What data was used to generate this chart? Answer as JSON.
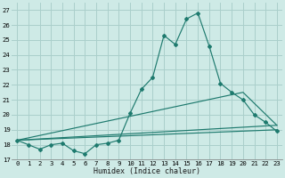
{
  "xlabel": "Humidex (Indice chaleur)",
  "background_color": "#ceeae6",
  "grid_color": "#aacfcb",
  "line_color": "#1e7a6e",
  "xlim": [
    -0.5,
    23.5
  ],
  "ylim": [
    17,
    27.5
  ],
  "yticks": [
    17,
    18,
    19,
    20,
    21,
    22,
    23,
    24,
    25,
    26,
    27
  ],
  "xticks": [
    0,
    1,
    2,
    3,
    4,
    5,
    6,
    7,
    8,
    9,
    10,
    11,
    12,
    13,
    14,
    15,
    16,
    17,
    18,
    19,
    20,
    21,
    22,
    23
  ],
  "series1_x": [
    0,
    1,
    2,
    3,
    4,
    5,
    6,
    7,
    8,
    9,
    10,
    11,
    12,
    13,
    14,
    15,
    16,
    17,
    18,
    19,
    20,
    21,
    22,
    23
  ],
  "series1_y": [
    18.3,
    18.0,
    17.7,
    18.0,
    18.1,
    17.6,
    17.4,
    18.0,
    18.1,
    18.3,
    20.1,
    21.7,
    22.5,
    25.3,
    24.7,
    26.4,
    26.8,
    24.6,
    22.1,
    21.5,
    21.0,
    20.0,
    19.5,
    18.9
  ],
  "series2_x": [
    0,
    23
  ],
  "series2_y": [
    18.3,
    19.3
  ],
  "series3_x": [
    0,
    20,
    23
  ],
  "series3_y": [
    18.3,
    21.5,
    19.3
  ],
  "series4_x": [
    0,
    23
  ],
  "series4_y": [
    18.3,
    19.0
  ]
}
